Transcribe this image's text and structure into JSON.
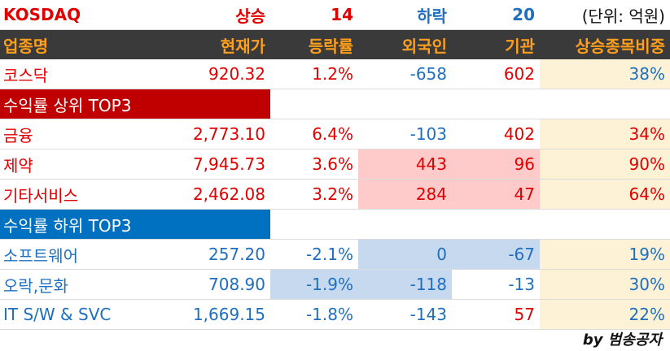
{
  "header": {
    "index_name": "KOSDAQ",
    "up_label": "상승",
    "up_count": "14",
    "down_label": "하락",
    "down_count": "20",
    "unit": "(단위: 억원)"
  },
  "columns": [
    "업종명",
    "현재가",
    "등락률",
    "외국인",
    "기관",
    "상승종목비중"
  ],
  "market_row": [
    "코스닥",
    "920.32",
    "1.2%",
    "-658",
    "602",
    "38%"
  ],
  "top_section": {
    "title": "수익률 상위 TOP3",
    "rows": [
      [
        "금융",
        "2,773.10",
        "6.4%",
        "-103",
        "402",
        "34%"
      ],
      [
        "제약",
        "7,945.73",
        "3.6%",
        "443",
        "96",
        "90%"
      ],
      [
        "기타서비스",
        "2,462.08",
        "3.2%",
        "284",
        "47",
        "64%"
      ]
    ]
  },
  "bottom_section": {
    "title": "수익률 하위 TOP3",
    "rows": [
      [
        "소프트웨어",
        "257.20",
        "-2.1%",
        "0",
        "-67",
        "19%"
      ],
      [
        "오락,문화",
        "708.90",
        "-1.9%",
        "-118",
        "-13",
        "30%"
      ],
      [
        "IT S/W & SVC",
        "1,669.15",
        "-1.8%",
        "-143",
        "57",
        "22%"
      ]
    ]
  },
  "footer": "by 범송공자"
}
